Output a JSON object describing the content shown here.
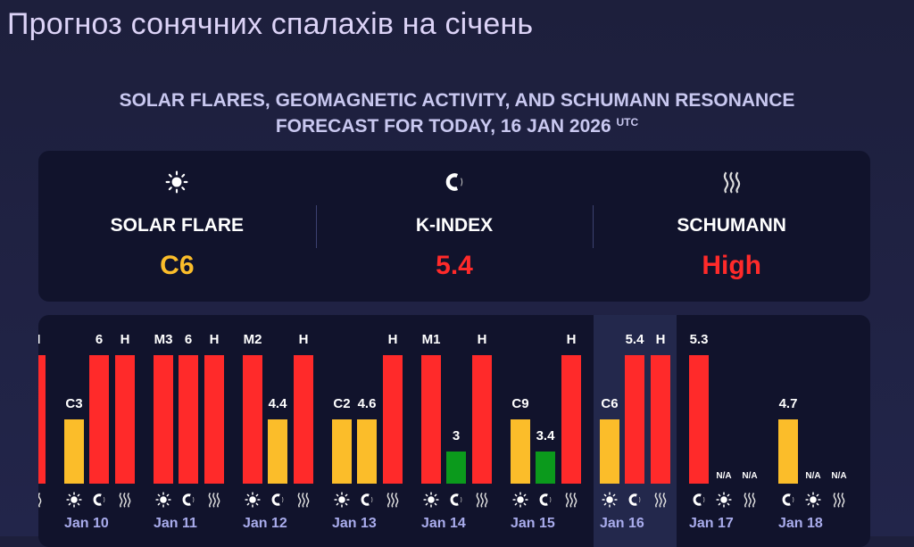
{
  "page": {
    "title": "Прогноз сонячних спалахів на січень",
    "subtitle_line1": "SOLAR FLARES, GEOMAGNETIC ACTIVITY, AND SCHUMANN RESONANCE",
    "subtitle_line2": "FORECAST FOR TODAY, 16 JAN 2026",
    "subtitle_sup": "UTC"
  },
  "colors": {
    "high": "#ff2a2a",
    "medium": "#fbbd2a",
    "low": "#0b9a1c",
    "text": "#ffffff",
    "date": "#a9acec"
  },
  "summary": [
    {
      "icon": "sun-icon",
      "label": "SOLAR FLARE",
      "value": "C6",
      "color": "#fbbd2a"
    },
    {
      "icon": "magnet-icon",
      "label": "K-INDEX",
      "value": "5.4",
      "color": "#ff2a2a"
    },
    {
      "icon": "waves-icon",
      "label": "SCHUMANN",
      "value": "High",
      "color": "#ff2a2a"
    }
  ],
  "chart_data": {
    "type": "bar",
    "level_scale": "low=1, medium=2, high=4 (bar height relative to max 4)",
    "highlighted_day": "Jan 16",
    "days": [
      {
        "date": "",
        "bars": [
          {
            "metric": "schumann",
            "label": "H",
            "level": 4,
            "color": "high"
          }
        ]
      },
      {
        "date": "Jan 10",
        "bars": [
          {
            "metric": "flare",
            "label": "C3",
            "level": 2,
            "color": "medium"
          },
          {
            "metric": "k-index",
            "label": "6",
            "level": 4,
            "color": "high"
          },
          {
            "metric": "schumann",
            "label": "H",
            "level": 4,
            "color": "high"
          }
        ]
      },
      {
        "date": "Jan 11",
        "bars": [
          {
            "metric": "flare",
            "label": "M3",
            "level": 4,
            "color": "high"
          },
          {
            "metric": "k-index",
            "label": "6",
            "level": 4,
            "color": "high"
          },
          {
            "metric": "schumann",
            "label": "H",
            "level": 4,
            "color": "high"
          }
        ]
      },
      {
        "date": "Jan 12",
        "bars": [
          {
            "metric": "flare",
            "label": "M2",
            "level": 4,
            "color": "high"
          },
          {
            "metric": "k-index",
            "label": "4.4",
            "level": 2,
            "color": "medium"
          },
          {
            "metric": "schumann",
            "label": "H",
            "level": 4,
            "color": "high"
          }
        ]
      },
      {
        "date": "Jan 13",
        "bars": [
          {
            "metric": "flare",
            "label": "C2",
            "level": 2,
            "color": "medium"
          },
          {
            "metric": "k-index",
            "label": "4.6",
            "level": 2,
            "color": "medium"
          },
          {
            "metric": "schumann",
            "label": "H",
            "level": 4,
            "color": "high"
          }
        ]
      },
      {
        "date": "Jan 14",
        "bars": [
          {
            "metric": "flare",
            "label": "M1",
            "level": 4,
            "color": "high"
          },
          {
            "metric": "k-index",
            "label": "3",
            "level": 1,
            "color": "low"
          },
          {
            "metric": "schumann",
            "label": "H",
            "level": 4,
            "color": "high"
          }
        ]
      },
      {
        "date": "Jan 15",
        "bars": [
          {
            "metric": "flare",
            "label": "C9",
            "level": 2,
            "color": "medium"
          },
          {
            "metric": "k-index",
            "label": "3.4",
            "level": 1,
            "color": "low"
          },
          {
            "metric": "schumann",
            "label": "H",
            "level": 4,
            "color": "high"
          }
        ]
      },
      {
        "date": "Jan 16",
        "bars": [
          {
            "metric": "flare",
            "label": "C6",
            "level": 2,
            "color": "medium"
          },
          {
            "metric": "k-index",
            "label": "5.4",
            "level": 4,
            "color": "high"
          },
          {
            "metric": "schumann",
            "label": "H",
            "level": 4,
            "color": "high"
          }
        ]
      },
      {
        "date": "Jan 17",
        "bars": [
          {
            "metric": "k-index",
            "label": "5.3",
            "level": 4,
            "color": "high"
          },
          {
            "metric": "flare",
            "label": "N/A",
            "level": 0,
            "color": "high"
          },
          {
            "metric": "schumann",
            "label": "N/A",
            "level": 0,
            "color": "high"
          }
        ]
      },
      {
        "date": "Jan 18",
        "bars": [
          {
            "metric": "k-index",
            "label": "4.7",
            "level": 2,
            "color": "medium"
          },
          {
            "metric": "flare",
            "label": "N/A",
            "level": 0,
            "color": "high"
          },
          {
            "metric": "schumann",
            "label": "N/A",
            "level": 0,
            "color": "high"
          }
        ]
      }
    ]
  }
}
